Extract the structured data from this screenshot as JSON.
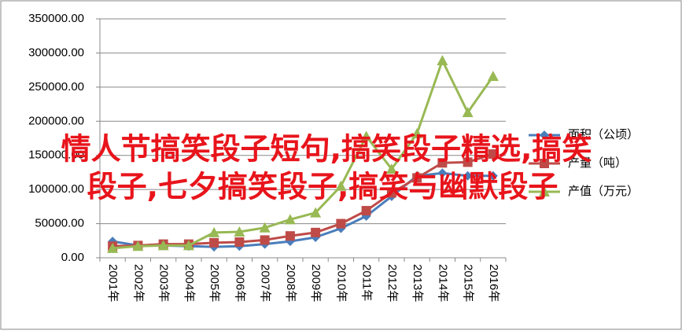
{
  "chart_data": {
    "type": "line",
    "categories": [
      "2001年",
      "2002年",
      "2003年",
      "2004年",
      "2005年",
      "2006年",
      "2007年",
      "2008年",
      "2009年",
      "2010年",
      "2011年",
      "2012年",
      "2013年",
      "2014年",
      "2015年",
      "2016年"
    ],
    "series": [
      {
        "name": "面积（公顷）",
        "color": "#4a7ebb",
        "marker": "diamond",
        "values": [
          24000,
          18000,
          18000,
          17000,
          16000,
          17000,
          20000,
          24000,
          30000,
          43000,
          61000,
          90000,
          120000,
          124000,
          120000,
          120000
        ]
      },
      {
        "name": "产量（吨）",
        "color": "#be4b48",
        "marker": "square",
        "values": [
          17000,
          18000,
          20000,
          20000,
          22000,
          23000,
          26000,
          32000,
          37000,
          50000,
          69000,
          95000,
          117000,
          139000,
          140000,
          152000
        ]
      },
      {
        "name": "产值（万元）",
        "color": "#98b954",
        "marker": "triangle",
        "values": [
          14000,
          17000,
          18000,
          18000,
          37000,
          38000,
          44000,
          56000,
          66000,
          105000,
          178000,
          130000,
          182000,
          289000,
          213000,
          266000
        ]
      }
    ],
    "ylim": [
      0,
      350000
    ],
    "yticks": [
      {
        "value": 0,
        "label": "0.00"
      },
      {
        "value": 50000,
        "label": "50000.00"
      },
      {
        "value": 100000,
        "label": "100000.00"
      },
      {
        "value": 150000,
        "label": "150000.00"
      },
      {
        "value": 200000,
        "label": "200000.00"
      },
      {
        "value": 250000,
        "label": "250000.00"
      },
      {
        "value": 300000,
        "label": "300000.00"
      },
      {
        "value": 350000,
        "label": "350000.00"
      }
    ],
    "grid": true,
    "legend": "right",
    "overlay": [
      "情人节搞笑段子短句,搞笑段子精选,搞笑",
      "段子,七夕搞笑段子,搞笑与幽默段子"
    ],
    "overlay_color": "#e8141b"
  }
}
